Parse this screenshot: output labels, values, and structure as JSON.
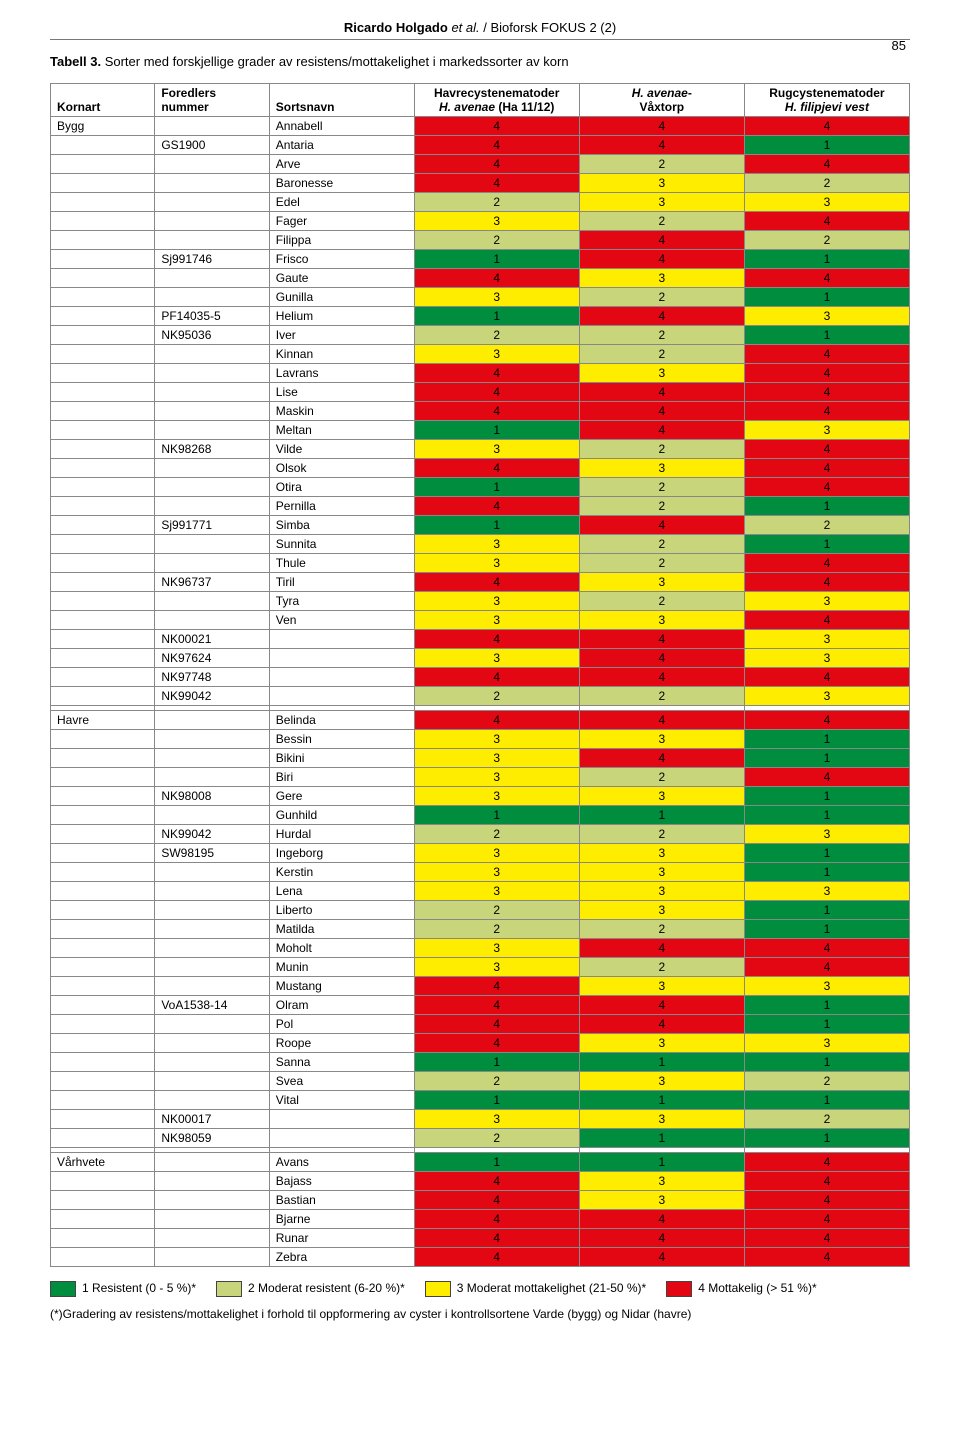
{
  "header": {
    "citation_author": "Ricardo Holgado",
    "citation_etal": "et al.",
    "citation_journal": " / Bioforsk FOKUS 2 (2)",
    "page_number": "85"
  },
  "caption": {
    "label": "Tabell 3.",
    "text": "Sorter med forskjellige grader av resistens/mottakelighet i markedssorter av korn"
  },
  "columns": {
    "c1": "Kornart",
    "c2_l1": "Foredlers",
    "c2_l2": "nummer",
    "c3": "Sortsnavn",
    "c4_l1": "Havrecystenematoder",
    "c4_l2_pre": "H. avenae",
    "c4_l2_post": " (Ha 11/12)",
    "c5_l1_pre": "H. avenae",
    "c5_l1_post": "-",
    "c5_l2": "Våxtorp",
    "c6_l1": "Rugcystenematoder",
    "c6_l2": "H. filipjevi vest"
  },
  "colors": {
    "1": "#008d3d",
    "2": "#c9d57b",
    "3": "#ffed00",
    "4": "#e30613"
  },
  "sections": [
    {
      "kornart": "Bygg",
      "rows": [
        {
          "num": "",
          "name": "Annabell",
          "v": [
            4,
            4,
            4
          ]
        },
        {
          "num": "GS1900",
          "name": "Antaria",
          "v": [
            4,
            4,
            1
          ]
        },
        {
          "num": "",
          "name": "Arve",
          "v": [
            4,
            2,
            4
          ]
        },
        {
          "num": "",
          "name": "Baronesse",
          "v": [
            4,
            3,
            2
          ]
        },
        {
          "num": "",
          "name": "Edel",
          "v": [
            2,
            3,
            3
          ]
        },
        {
          "num": "",
          "name": "Fager",
          "v": [
            3,
            2,
            4
          ]
        },
        {
          "num": "",
          "name": "Filippa",
          "v": [
            2,
            4,
            2
          ]
        },
        {
          "num": "Sj991746",
          "name": "Frisco",
          "v": [
            1,
            4,
            1
          ]
        },
        {
          "num": "",
          "name": "Gaute",
          "v": [
            4,
            3,
            4
          ]
        },
        {
          "num": "",
          "name": "Gunilla",
          "v": [
            3,
            2,
            1
          ]
        },
        {
          "num": "PF14035-5",
          "name": "Helium",
          "v": [
            1,
            4,
            3
          ]
        },
        {
          "num": "NK95036",
          "name": "Iver",
          "v": [
            2,
            2,
            1
          ]
        },
        {
          "num": "",
          "name": "Kinnan",
          "v": [
            3,
            2,
            4
          ]
        },
        {
          "num": "",
          "name": "Lavrans",
          "v": [
            4,
            3,
            4
          ]
        },
        {
          "num": "",
          "name": "Lise",
          "v": [
            4,
            4,
            4
          ]
        },
        {
          "num": "",
          "name": "Maskin",
          "v": [
            4,
            4,
            4
          ]
        },
        {
          "num": "",
          "name": "Meltan",
          "v": [
            1,
            4,
            3
          ]
        },
        {
          "num": "NK98268",
          "name": "Vilde",
          "v": [
            3,
            2,
            4
          ]
        },
        {
          "num": "",
          "name": "Olsok",
          "v": [
            4,
            3,
            4
          ]
        },
        {
          "num": "",
          "name": "Otira",
          "v": [
            1,
            2,
            4
          ]
        },
        {
          "num": "",
          "name": "Pernilla",
          "v": [
            4,
            2,
            1
          ]
        },
        {
          "num": "Sj991771",
          "name": "Simba",
          "v": [
            1,
            4,
            2
          ]
        },
        {
          "num": "",
          "name": "Sunnita",
          "v": [
            3,
            2,
            1
          ]
        },
        {
          "num": "",
          "name": "Thule",
          "v": [
            3,
            2,
            4
          ]
        },
        {
          "num": "NK96737",
          "name": "Tiril",
          "v": [
            4,
            3,
            4
          ]
        },
        {
          "num": "",
          "name": "Tyra",
          "v": [
            3,
            2,
            3
          ]
        },
        {
          "num": "",
          "name": "Ven",
          "v": [
            3,
            3,
            4
          ]
        },
        {
          "num": "NK00021",
          "name": "",
          "v": [
            4,
            4,
            3
          ]
        },
        {
          "num": "NK97624",
          "name": "",
          "v": [
            3,
            4,
            3
          ]
        },
        {
          "num": "NK97748",
          "name": "",
          "v": [
            4,
            4,
            4
          ]
        },
        {
          "num": "NK99042",
          "name": "",
          "v": [
            2,
            2,
            3
          ]
        }
      ]
    },
    {
      "kornart": "Havre",
      "rows": [
        {
          "num": "",
          "name": "Belinda",
          "v": [
            4,
            4,
            4
          ]
        },
        {
          "num": "",
          "name": "Bessin",
          "v": [
            3,
            3,
            1
          ]
        },
        {
          "num": "",
          "name": "Bikini",
          "v": [
            3,
            4,
            1
          ]
        },
        {
          "num": "",
          "name": "Biri",
          "v": [
            3,
            2,
            4
          ]
        },
        {
          "num": "NK98008",
          "name": "Gere",
          "v": [
            3,
            3,
            1
          ]
        },
        {
          "num": "",
          "name": "Gunhild",
          "v": [
            1,
            1,
            1
          ]
        },
        {
          "num": "NK99042",
          "name": "Hurdal",
          "v": [
            2,
            2,
            3
          ]
        },
        {
          "num": "SW98195",
          "name": "Ingeborg",
          "v": [
            3,
            3,
            1
          ]
        },
        {
          "num": "",
          "name": "Kerstin",
          "v": [
            3,
            3,
            1
          ]
        },
        {
          "num": "",
          "name": "Lena",
          "v": [
            3,
            3,
            3
          ]
        },
        {
          "num": "",
          "name": "Liberto",
          "v": [
            2,
            3,
            1
          ]
        },
        {
          "num": "",
          "name": "Matilda",
          "v": [
            2,
            2,
            1
          ]
        },
        {
          "num": "",
          "name": "Moholt",
          "v": [
            3,
            4,
            4
          ]
        },
        {
          "num": "",
          "name": "Munin",
          "v": [
            3,
            2,
            4
          ]
        },
        {
          "num": "",
          "name": "Mustang",
          "v": [
            4,
            3,
            3
          ]
        },
        {
          "num": "VoA1538-14",
          "name": "Olram",
          "v": [
            4,
            4,
            1
          ]
        },
        {
          "num": "",
          "name": "Pol",
          "v": [
            4,
            4,
            1
          ]
        },
        {
          "num": "",
          "name": "Roope",
          "v": [
            4,
            3,
            3
          ]
        },
        {
          "num": "",
          "name": "Sanna",
          "v": [
            1,
            1,
            1
          ]
        },
        {
          "num": "",
          "name": "Svea",
          "v": [
            2,
            3,
            2
          ]
        },
        {
          "num": "",
          "name": "Vital",
          "v": [
            1,
            1,
            1
          ]
        },
        {
          "num": "NK00017",
          "name": "",
          "v": [
            3,
            3,
            2
          ]
        },
        {
          "num": "NK98059",
          "name": "",
          "v": [
            2,
            1,
            1
          ]
        }
      ]
    },
    {
      "kornart": "Vårhvete",
      "rows": [
        {
          "num": "",
          "name": "Avans",
          "v": [
            1,
            1,
            4
          ]
        },
        {
          "num": "",
          "name": "Bajass",
          "v": [
            4,
            3,
            4
          ]
        },
        {
          "num": "",
          "name": "Bastian",
          "v": [
            4,
            3,
            4
          ]
        },
        {
          "num": "",
          "name": "Bjarne",
          "v": [
            4,
            4,
            4
          ]
        },
        {
          "num": "",
          "name": "Runar",
          "v": [
            4,
            4,
            4
          ]
        },
        {
          "num": "",
          "name": "Zebra",
          "v": [
            4,
            4,
            4
          ]
        }
      ]
    }
  ],
  "legend": [
    {
      "c": 1,
      "label": "1 Resistent (0 - 5 %)*"
    },
    {
      "c": 2,
      "label": "2 Moderat resistent (6-20 %)*"
    },
    {
      "c": 3,
      "label": "3 Moderat mottakelighet (21-50 %)*"
    },
    {
      "c": 4,
      "label": "4 Mottakelig (> 51 %)*"
    }
  ],
  "footnote": "(*)Gradering av resistens/mottakelighet i forhold til oppformering av cyster i kontrollsortene Varde (bygg) og Nidar (havre)"
}
